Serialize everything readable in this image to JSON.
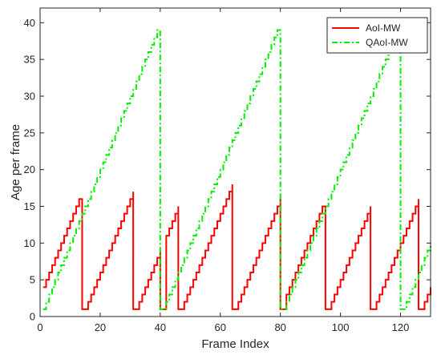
{
  "chart_data": {
    "type": "line",
    "xlabel": "Frame Index",
    "ylabel": "Age per frame",
    "xlim": [
      0,
      130
    ],
    "ylim": [
      0,
      42
    ],
    "xticks": [
      0,
      20,
      40,
      60,
      80,
      100,
      120
    ],
    "yticks": [
      0,
      5,
      10,
      15,
      20,
      25,
      30,
      35,
      40
    ],
    "grid": false,
    "legend_position": "top-right",
    "series": [
      {
        "name": "AoI-MW",
        "color": "#ff0000",
        "style": "solid-step",
        "points": [
          [
            1,
            4
          ],
          [
            2,
            5
          ],
          [
            3,
            6
          ],
          [
            4,
            7
          ],
          [
            5,
            8
          ],
          [
            6,
            9
          ],
          [
            7,
            10
          ],
          [
            8,
            11
          ],
          [
            9,
            12
          ],
          [
            10,
            13
          ],
          [
            11,
            14
          ],
          [
            12,
            15
          ],
          [
            13,
            16
          ],
          [
            14,
            16
          ],
          [
            14,
            1
          ],
          [
            15,
            1
          ],
          [
            16,
            2
          ],
          [
            17,
            3
          ],
          [
            18,
            4
          ],
          [
            19,
            5
          ],
          [
            20,
            6
          ],
          [
            21,
            7
          ],
          [
            22,
            8
          ],
          [
            23,
            9
          ],
          [
            24,
            10
          ],
          [
            25,
            11
          ],
          [
            26,
            12
          ],
          [
            27,
            13
          ],
          [
            28,
            14
          ],
          [
            29,
            15
          ],
          [
            30,
            16
          ],
          [
            31,
            17
          ],
          [
            31,
            1
          ],
          [
            32,
            1
          ],
          [
            33,
            2
          ],
          [
            34,
            3
          ],
          [
            35,
            4
          ],
          [
            36,
            5
          ],
          [
            37,
            6
          ],
          [
            38,
            7
          ],
          [
            39,
            8
          ],
          [
            40,
            9
          ],
          [
            40,
            1
          ],
          [
            41,
            1
          ],
          [
            42,
            11
          ],
          [
            43,
            12
          ],
          [
            44,
            13
          ],
          [
            45,
            14
          ],
          [
            46,
            15
          ],
          [
            46,
            1
          ],
          [
            47,
            1
          ],
          [
            48,
            2
          ],
          [
            49,
            3
          ],
          [
            50,
            4
          ],
          [
            51,
            5
          ],
          [
            52,
            6
          ],
          [
            53,
            7
          ],
          [
            54,
            8
          ],
          [
            55,
            9
          ],
          [
            56,
            10
          ],
          [
            57,
            11
          ],
          [
            58,
            12
          ],
          [
            59,
            13
          ],
          [
            60,
            14
          ],
          [
            61,
            15
          ],
          [
            62,
            16
          ],
          [
            63,
            17
          ],
          [
            64,
            18
          ],
          [
            64,
            1
          ],
          [
            65,
            1
          ],
          [
            66,
            2
          ],
          [
            67,
            3
          ],
          [
            68,
            4
          ],
          [
            69,
            5
          ],
          [
            70,
            6
          ],
          [
            71,
            7
          ],
          [
            72,
            8
          ],
          [
            73,
            9
          ],
          [
            74,
            10
          ],
          [
            75,
            11
          ],
          [
            76,
            12
          ],
          [
            77,
            13
          ],
          [
            78,
            14
          ],
          [
            79,
            15
          ],
          [
            80,
            16
          ],
          [
            80,
            1
          ],
          [
            81,
            1
          ],
          [
            82,
            3
          ],
          [
            83,
            4
          ],
          [
            84,
            5
          ],
          [
            85,
            6
          ],
          [
            86,
            7
          ],
          [
            87,
            8
          ],
          [
            88,
            9
          ],
          [
            89,
            10
          ],
          [
            90,
            11
          ],
          [
            91,
            12
          ],
          [
            92,
            13
          ],
          [
            93,
            14
          ],
          [
            94,
            15
          ],
          [
            95,
            15
          ],
          [
            95,
            1
          ],
          [
            96,
            1
          ],
          [
            97,
            2
          ],
          [
            98,
            3
          ],
          [
            99,
            4
          ],
          [
            100,
            5
          ],
          [
            101,
            6
          ],
          [
            102,
            7
          ],
          [
            103,
            8
          ],
          [
            104,
            9
          ],
          [
            105,
            10
          ],
          [
            106,
            11
          ],
          [
            107,
            12
          ],
          [
            108,
            13
          ],
          [
            109,
            14
          ],
          [
            110,
            15
          ],
          [
            110,
            1
          ],
          [
            111,
            1
          ],
          [
            112,
            2
          ],
          [
            113,
            3
          ],
          [
            114,
            4
          ],
          [
            115,
            5
          ],
          [
            116,
            6
          ],
          [
            117,
            7
          ],
          [
            118,
            8
          ],
          [
            119,
            9
          ],
          [
            120,
            10
          ],
          [
            121,
            11
          ],
          [
            122,
            12
          ],
          [
            123,
            13
          ],
          [
            124,
            14
          ],
          [
            125,
            15
          ],
          [
            126,
            16
          ],
          [
            126,
            1
          ],
          [
            127,
            1
          ],
          [
            128,
            2
          ],
          [
            129,
            3
          ],
          [
            130,
            4
          ]
        ]
      },
      {
        "name": "QAoI-MW",
        "color": "#00ee00",
        "style": "dash-dot-step",
        "points": [
          [
            1,
            1
          ],
          [
            2,
            2
          ],
          [
            3,
            3
          ],
          [
            4,
            4
          ],
          [
            5,
            5
          ],
          [
            6,
            6
          ],
          [
            7,
            7
          ],
          [
            8,
            8
          ],
          [
            9,
            9
          ],
          [
            10,
            10
          ],
          [
            11,
            11
          ],
          [
            12,
            12
          ],
          [
            13,
            13
          ],
          [
            14,
            14
          ],
          [
            15,
            15
          ],
          [
            16,
            16
          ],
          [
            17,
            17
          ],
          [
            18,
            18
          ],
          [
            19,
            19
          ],
          [
            20,
            20
          ],
          [
            21,
            21
          ],
          [
            22,
            22
          ],
          [
            23,
            23
          ],
          [
            24,
            24
          ],
          [
            25,
            25
          ],
          [
            26,
            26
          ],
          [
            27,
            27
          ],
          [
            28,
            28
          ],
          [
            29,
            29
          ],
          [
            30,
            30
          ],
          [
            31,
            31
          ],
          [
            32,
            32
          ],
          [
            33,
            33
          ],
          [
            34,
            34
          ],
          [
            35,
            35
          ],
          [
            36,
            36
          ],
          [
            37,
            37
          ],
          [
            38,
            38
          ],
          [
            39,
            39
          ],
          [
            40,
            39
          ],
          [
            40,
            1
          ],
          [
            41,
            1
          ],
          [
            42,
            2
          ],
          [
            43,
            3
          ],
          [
            44,
            4
          ],
          [
            45,
            5
          ],
          [
            46,
            6
          ],
          [
            47,
            7
          ],
          [
            48,
            8
          ],
          [
            49,
            9
          ],
          [
            50,
            10
          ],
          [
            51,
            11
          ],
          [
            52,
            12
          ],
          [
            53,
            13
          ],
          [
            54,
            14
          ],
          [
            55,
            15
          ],
          [
            56,
            16
          ],
          [
            57,
            17
          ],
          [
            58,
            18
          ],
          [
            59,
            19
          ],
          [
            60,
            20
          ],
          [
            61,
            21
          ],
          [
            62,
            22
          ],
          [
            63,
            23
          ],
          [
            64,
            24
          ],
          [
            65,
            25
          ],
          [
            66,
            26
          ],
          [
            67,
            27
          ],
          [
            68,
            28
          ],
          [
            69,
            29
          ],
          [
            70,
            30
          ],
          [
            71,
            31
          ],
          [
            72,
            32
          ],
          [
            73,
            33
          ],
          [
            74,
            34
          ],
          [
            75,
            35
          ],
          [
            76,
            36
          ],
          [
            77,
            37
          ],
          [
            78,
            38
          ],
          [
            79,
            39
          ],
          [
            80,
            39
          ],
          [
            80,
            1
          ],
          [
            81,
            1
          ],
          [
            82,
            2
          ],
          [
            83,
            3
          ],
          [
            84,
            4
          ],
          [
            85,
            5
          ],
          [
            86,
            6
          ],
          [
            87,
            7
          ],
          [
            88,
            8
          ],
          [
            89,
            9
          ],
          [
            90,
            10
          ],
          [
            91,
            11
          ],
          [
            92,
            12
          ],
          [
            93,
            13
          ],
          [
            94,
            14
          ],
          [
            95,
            15
          ],
          [
            96,
            16
          ],
          [
            97,
            17
          ],
          [
            98,
            18
          ],
          [
            99,
            19
          ],
          [
            100,
            20
          ],
          [
            101,
            21
          ],
          [
            102,
            22
          ],
          [
            103,
            23
          ],
          [
            104,
            24
          ],
          [
            105,
            25
          ],
          [
            106,
            26
          ],
          [
            107,
            27
          ],
          [
            108,
            28
          ],
          [
            109,
            29
          ],
          [
            110,
            30
          ],
          [
            111,
            31
          ],
          [
            112,
            32
          ],
          [
            113,
            33
          ],
          [
            114,
            34
          ],
          [
            115,
            35
          ],
          [
            116,
            36
          ],
          [
            117,
            37
          ],
          [
            118,
            38
          ],
          [
            119,
            39
          ],
          [
            120,
            39
          ],
          [
            120,
            1
          ],
          [
            121,
            1
          ],
          [
            122,
            2
          ],
          [
            123,
            3
          ],
          [
            124,
            4
          ],
          [
            125,
            5
          ],
          [
            126,
            6
          ],
          [
            127,
            7
          ],
          [
            128,
            8
          ],
          [
            129,
            9
          ],
          [
            130,
            10
          ]
        ]
      }
    ]
  }
}
